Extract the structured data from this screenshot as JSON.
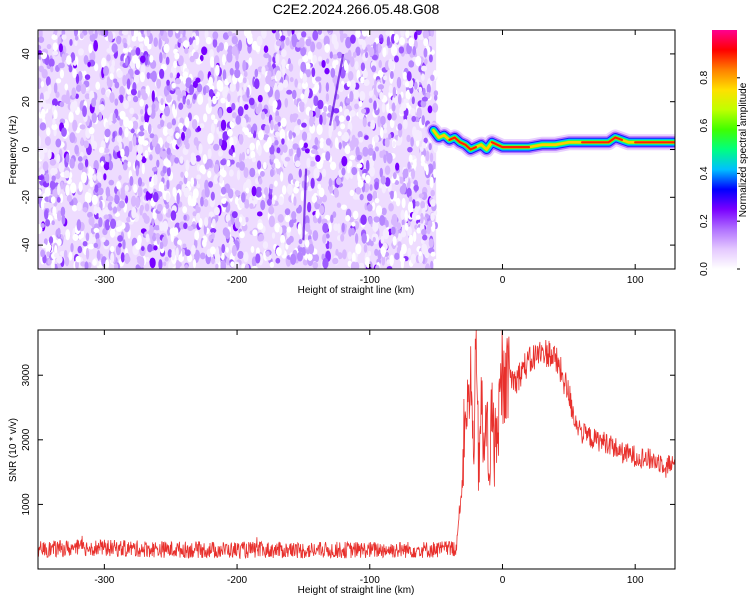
{
  "title": "C2E2.2024.266.05.48.G08",
  "chart_data": [
    {
      "type": "heatmap",
      "xlabel": "Height of straight line (km)",
      "ylabel": "Frequency (Hz)",
      "xlim": [
        -350,
        130
      ],
      "ylim": [
        -50,
        50
      ],
      "xticks": [
        -300,
        -200,
        -100,
        0,
        100
      ],
      "yticks": [
        -40,
        -20,
        0,
        20,
        40
      ],
      "noise_region_x": [
        -350,
        -50
      ],
      "signal_track": {
        "x": [
          -52,
          -48,
          -44,
          -40,
          -36,
          -32,
          -28,
          -24,
          -20,
          -16,
          -12,
          -8,
          -4,
          0,
          10,
          20,
          30,
          40,
          50,
          60,
          70,
          80,
          85,
          90,
          95,
          100,
          110,
          120,
          130
        ],
        "y": [
          8,
          5,
          6,
          4,
          5,
          3,
          2,
          0,
          1,
          2,
          0,
          3,
          2,
          1,
          1,
          1,
          2,
          2,
          3,
          3,
          3,
          3,
          5,
          4,
          3,
          3,
          3,
          3,
          3
        ]
      },
      "colorbar": {
        "label": "Normalized spectral amplitude",
        "range": [
          0,
          1
        ],
        "ticks": [
          0.0,
          0.2,
          0.4,
          0.6,
          0.8
        ],
        "tick_labels": [
          "0.0",
          "0.2",
          "0.4",
          "0.6",
          "0.8"
        ],
        "colors": [
          "#ffffff",
          "#e4c8ff",
          "#b070ff",
          "#7a00ff",
          "#0000ff",
          "#00c0ff",
          "#00ff80",
          "#40ff00",
          "#c0ff00",
          "#ffe000",
          "#ff8000",
          "#ff0000",
          "#ff0090"
        ]
      }
    },
    {
      "type": "line",
      "xlabel": "Height of straight line (km)",
      "ylabel": "SNR (10 * v/v)",
      "xlim": [
        -350,
        130
      ],
      "ylim": [
        0,
        3700
      ],
      "xticks": [
        -300,
        -200,
        -100,
        0,
        100
      ],
      "yticks": [
        1000,
        2000,
        3000
      ],
      "series": [
        {
          "color": "#e8302c",
          "x": [
            -350,
            -310,
            -250,
            -150,
            -50,
            -35,
            -30,
            -28,
            -26,
            -24,
            -22,
            -20,
            -18,
            -16,
            -14,
            -12,
            -10,
            -8,
            -6,
            -4,
            -2,
            0,
            5,
            10,
            15,
            20,
            25,
            30,
            35,
            40,
            45,
            50,
            55,
            60,
            70,
            80,
            90,
            100,
            110,
            120,
            130
          ],
          "y": [
            300,
            330,
            300,
            290,
            300,
            320,
            1400,
            2700,
            2300,
            3000,
            1800,
            3300,
            1600,
            2600,
            1700,
            2400,
            1500,
            2500,
            1800,
            2200,
            2600,
            2800,
            3000,
            2900,
            3100,
            3200,
            3300,
            3350,
            3350,
            3250,
            3000,
            2700,
            2300,
            2100,
            2000,
            1950,
            1800,
            1750,
            1700,
            1650,
            1600
          ]
        }
      ]
    }
  ]
}
